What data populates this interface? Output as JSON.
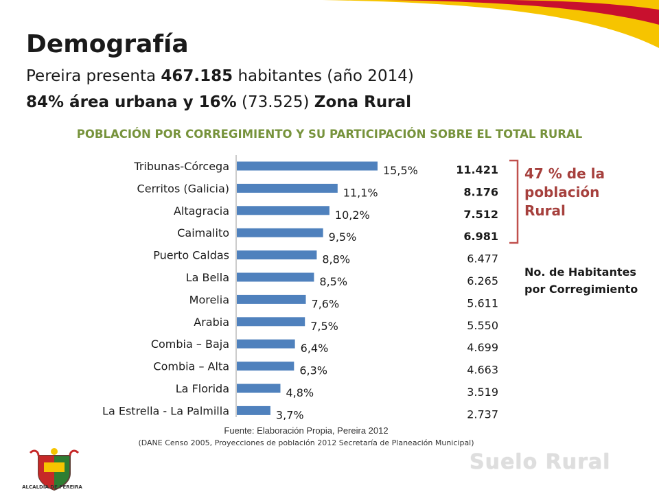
{
  "header": {
    "title": "Demografía",
    "line1_pre": "Pereira presenta ",
    "line1_bold": "467.185",
    "line1_post": " habitantes (año 2014)",
    "line2_bold1": "84% área urbana y 16%",
    "line2_mid": " (73.525) ",
    "line2_bold2": "Zona Rural"
  },
  "colors": {
    "bar": "#4f81bd",
    "title_green": "#77933c",
    "note_red": "#a6403d",
    "swoosh_yellow": "#f6c400",
    "swoosh_red": "#c8102e"
  },
  "chart_data": {
    "type": "bar",
    "orientation": "horizontal",
    "title": "POBLACIÓN POR CORREGIMIENTO Y SU PARTICIPACIÓN SOBRE EL TOTAL RURAL",
    "categories": [
      "Tribunas-Córcega",
      "Cerritos (Galicia)",
      "Altagracia",
      "Caimalito",
      "Puerto Caldas",
      "La Bella",
      "Morelia",
      "Arabia",
      "Combia – Baja",
      "Combia – Alta",
      "La Florida",
      "La Estrella - La Palmilla"
    ],
    "values": [
      15.5,
      11.1,
      10.2,
      9.5,
      8.8,
      8.5,
      7.6,
      7.5,
      6.4,
      6.3,
      4.8,
      3.7
    ],
    "value_labels": [
      "15,5%",
      "11,1%",
      "10,2%",
      "9,5%",
      "8,8%",
      "8,5%",
      "7,6%",
      "7,5%",
      "6,4%",
      "6,3%",
      "4,8%",
      "3,7%"
    ],
    "habitantes": [
      "11.421",
      "8.176",
      "7.512",
      "6.981",
      "6.477",
      "6.265",
      "5.611",
      "5.550",
      "4.699",
      "4.663",
      "3.519",
      "2.737"
    ],
    "habitantes_bold": [
      true,
      true,
      true,
      true,
      false,
      false,
      false,
      false,
      false,
      false,
      false,
      false
    ],
    "xlim": [
      0,
      20
    ],
    "grid": false,
    "legend": "none"
  },
  "annotation": {
    "note": "47 % de la población Rural",
    "habitantes_label": "No. de Habitantes por Corregimiento"
  },
  "footer": {
    "source": "Fuente: Elaboración Propia, Pereira 2012",
    "source_detail": "(DANE Censo 2005, Proyecciones de población 2012 Secretaría de Planeación Municipal)",
    "logo_text": "ALCALDIA DE PEREIRA",
    "watermark": "Suelo Rural"
  }
}
